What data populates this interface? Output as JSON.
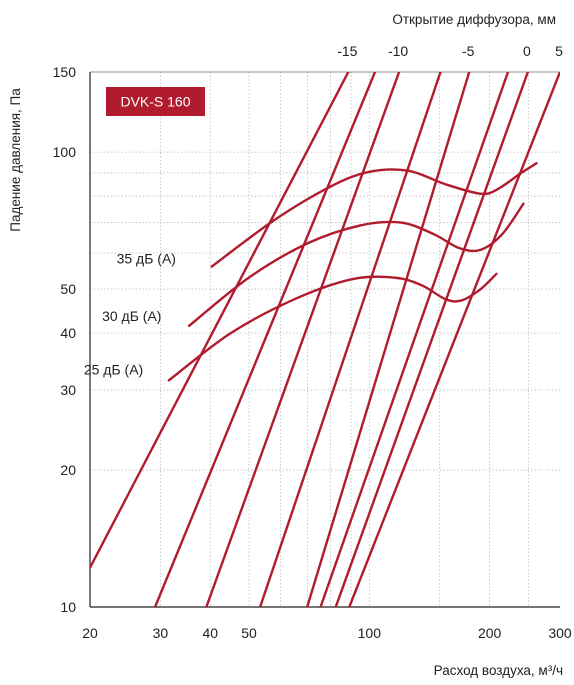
{
  "chart_data": {
    "type": "line",
    "title": "DVK-S 160",
    "xlabel": "Расход воздуха, м³/ч",
    "ylabel": "Падение давления, Па",
    "top_axis_label": "Открытие диффузора, мм",
    "x_scale": "log",
    "y_scale": "log",
    "xlim": [
      20,
      300
    ],
    "ylim": [
      10,
      150
    ],
    "grid": true,
    "colors": {
      "curve": "#b01c2e",
      "badge": "#b01c2e",
      "grid": "#bdbdbd",
      "axis": "#222222"
    },
    "x_ticks": [
      {
        "value": 20,
        "label": "20"
      },
      {
        "value": 30,
        "label": "30"
      },
      {
        "value": 40,
        "label": "40"
      },
      {
        "value": 50,
        "label": "50"
      },
      {
        "value": 100,
        "label": "100"
      },
      {
        "value": 200,
        "label": "200"
      },
      {
        "value": 300,
        "label": "300"
      }
    ],
    "y_ticks": [
      {
        "value": 10,
        "label": "10"
      },
      {
        "value": 20,
        "label": "20"
      },
      {
        "value": 30,
        "label": "30"
      },
      {
        "value": 40,
        "label": "40"
      },
      {
        "value": 50,
        "label": "50"
      },
      {
        "value": 100,
        "label": "100"
      },
      {
        "value": 150,
        "label": "150"
      }
    ],
    "x_minor_grid": [
      60,
      70,
      80,
      90,
      150,
      250
    ],
    "y_minor_grid": [
      60,
      70,
      80,
      90
    ],
    "opening_lines": [
      {
        "label": "-15",
        "points": [
          [
            20,
            12.2
          ],
          [
            88.6,
            150
          ]
        ]
      },
      {
        "label": "",
        "points": [
          [
            29.1,
            10
          ],
          [
            103.3,
            150
          ]
        ]
      },
      {
        "label": "-10",
        "points": [
          [
            39.1,
            10
          ],
          [
            118.7,
            150
          ]
        ]
      },
      {
        "label": "",
        "points": [
          [
            53.3,
            10
          ],
          [
            150.7,
            150
          ]
        ]
      },
      {
        "label": "-5",
        "points": [
          [
            69.9,
            10
          ],
          [
            177.8,
            150
          ]
        ]
      },
      {
        "label": "",
        "points": [
          [
            75.5,
            10
          ],
          [
            222.3,
            150
          ]
        ]
      },
      {
        "label": "0",
        "points": [
          [
            82.4,
            10
          ],
          [
            249.3,
            150
          ]
        ]
      },
      {
        "label": "5",
        "points": [
          [
            89.1,
            10
          ],
          [
            300,
            150
          ]
        ]
      }
    ],
    "noise_curves": [
      {
        "label": "35 дБ (A)",
        "points": [
          [
            40.3,
            56
          ],
          [
            58,
            71
          ],
          [
            80,
            84
          ],
          [
            100,
            90.5
          ],
          [
            125,
            91
          ],
          [
            155,
            85
          ],
          [
            190,
            81
          ],
          [
            210,
            83
          ],
          [
            240,
            90
          ],
          [
            262,
            94.5
          ]
        ]
      },
      {
        "label": "30 дБ (A)",
        "points": [
          [
            35.4,
            41.5
          ],
          [
            50,
            53
          ],
          [
            70,
            63
          ],
          [
            95,
            69
          ],
          [
            120,
            70
          ],
          [
            145,
            66
          ],
          [
            168,
            61.5
          ],
          [
            190,
            61
          ],
          [
            215,
            66
          ],
          [
            243,
            77
          ]
        ]
      },
      {
        "label": "25 дБ (A)",
        "points": [
          [
            31.5,
            31.5
          ],
          [
            45,
            40
          ],
          [
            65,
            47.5
          ],
          [
            90,
            52.5
          ],
          [
            115,
            53
          ],
          [
            135,
            51
          ],
          [
            155,
            47.5
          ],
          [
            170,
            47.2
          ],
          [
            190,
            50
          ],
          [
            208,
            54
          ]
        ]
      }
    ]
  }
}
